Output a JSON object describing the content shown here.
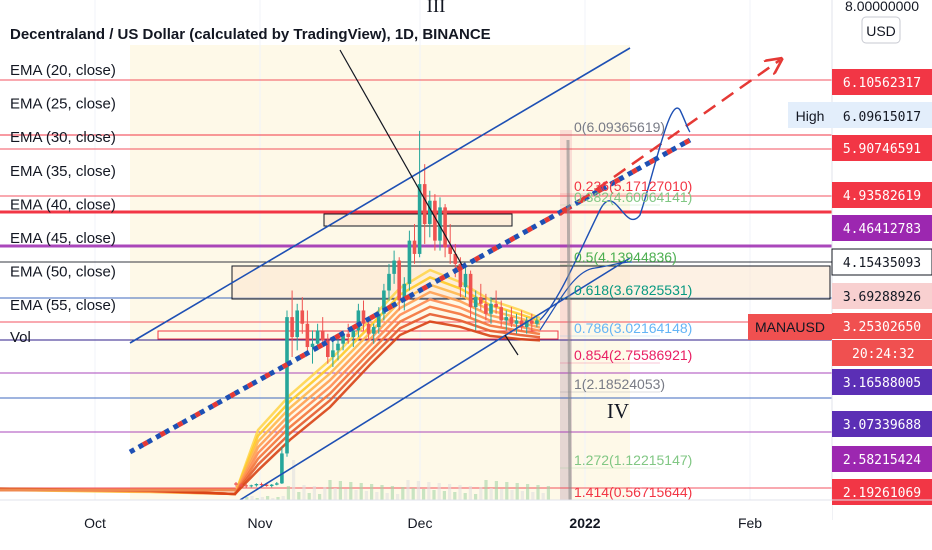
{
  "chart_data": {
    "type": "candlestick",
    "symbol": "MANAUSD",
    "title": "Decentraland / US Dollar (calculated by TradingView), 1D, BINANCE",
    "indicators": [
      "EMA (20, close)",
      "EMA (25, close)",
      "EMA (30, close)",
      "EMA (35, close)",
      "EMA (40, close)",
      "EMA (45, close)",
      "EMA (50, close)",
      "EMA (55, close)"
    ],
    "volume_label": "Vol",
    "x_ticks": [
      "Oct",
      "Nov",
      "Dec",
      "2022",
      "Feb"
    ],
    "currency": "USD",
    "y_top_label": "8.00000000",
    "high_label": "High",
    "high_value": "6.09615017",
    "countdown": "20:24:32",
    "wave_labels": [
      "III",
      "IV"
    ],
    "price_tags": [
      {
        "value": "6.10562317",
        "color": "#f23645"
      },
      {
        "value": "5.90746591",
        "color": "#f23645"
      },
      {
        "value": "4.93582619",
        "color": "#f23645"
      },
      {
        "value": "4.46412783",
        "color": "#9c27b0"
      },
      {
        "value": "4.15435093",
        "color": "#ffffff"
      },
      {
        "value": "3.69288926",
        "color": "#f8d0d0"
      },
      {
        "value": "3.25302650",
        "color": "#f05050"
      },
      {
        "value": "3.16588005",
        "color": "#5b2fb5"
      },
      {
        "value": "3.07339688",
        "color": "#5b2fb5"
      },
      {
        "value": "2.58215424",
        "color": "#9c27b0"
      },
      {
        "value": "2.19261069",
        "color": "#f23645"
      }
    ],
    "fib_levels": [
      {
        "label": "0(6.09365619)",
        "color": "#787b86"
      },
      {
        "label": "0.236(5.17127010)",
        "color": "#f23645"
      },
      {
        "label": "0.382(4.60064141)",
        "color": "#81c784"
      },
      {
        "label": "0.5(4.13944836)",
        "color": "#4caf50"
      },
      {
        "label": "0.618(3.67825531)",
        "color": "#089981"
      },
      {
        "label": "0.786(3.02164148)",
        "color": "#64b5f6"
      },
      {
        "label": "0.854(2.75586921)",
        "color": "#e91e63"
      },
      {
        "label": "1(2.18524053)",
        "color": "#787b86"
      },
      {
        "label": "1.272(1.12215147)",
        "color": "#81c784"
      },
      {
        "label": "1.414(0.56715644)",
        "color": "#f23645"
      }
    ],
    "candles": [
      [
        0.8,
        0.82,
        0.75,
        0.78
      ],
      [
        0.78,
        0.8,
        0.74,
        0.77
      ],
      [
        0.77,
        0.79,
        0.73,
        0.76
      ],
      [
        0.76,
        0.78,
        0.74,
        0.77
      ],
      [
        0.77,
        0.8,
        0.75,
        0.79
      ],
      [
        0.79,
        0.81,
        0.76,
        0.78
      ],
      [
        0.78,
        0.8,
        0.75,
        0.76
      ],
      [
        0.76,
        0.79,
        0.74,
        0.78
      ],
      [
        0.78,
        0.82,
        0.77,
        0.8
      ],
      [
        0.8,
        1.35,
        0.79,
        1.25
      ],
      [
        1.25,
        3.4,
        1.2,
        3.3
      ],
      [
        3.3,
        3.7,
        2.7,
        3.0
      ],
      [
        3.0,
        3.5,
        2.8,
        3.4
      ],
      [
        3.4,
        3.6,
        3.05,
        3.2
      ],
      [
        3.2,
        3.4,
        2.75,
        2.85
      ],
      [
        2.85,
        3.1,
        2.6,
        2.9
      ],
      [
        2.9,
        3.2,
        2.8,
        3.1
      ],
      [
        3.1,
        3.3,
        2.9,
        2.95
      ],
      [
        2.95,
        3.05,
        2.6,
        2.7
      ],
      [
        2.7,
        2.95,
        2.55,
        2.8
      ],
      [
        2.8,
        3.0,
        2.65,
        2.9
      ],
      [
        2.9,
        3.1,
        2.8,
        3.05
      ],
      [
        3.05,
        3.2,
        2.9,
        3.0
      ],
      [
        3.0,
        3.15,
        2.85,
        3.1
      ],
      [
        3.1,
        3.5,
        3.0,
        3.4
      ],
      [
        3.4,
        3.55,
        3.1,
        3.2
      ],
      [
        3.2,
        3.3,
        2.95,
        3.05
      ],
      [
        3.05,
        3.2,
        2.9,
        3.15
      ],
      [
        3.15,
        3.45,
        3.05,
        3.35
      ],
      [
        3.35,
        3.8,
        3.25,
        3.7
      ],
      [
        3.7,
        4.1,
        3.55,
        3.95
      ],
      [
        3.95,
        4.3,
        3.8,
        4.15
      ],
      [
        4.15,
        4.2,
        3.4,
        3.55
      ],
      [
        3.55,
        3.9,
        3.4,
        3.8
      ],
      [
        3.8,
        4.6,
        3.7,
        4.45
      ],
      [
        4.45,
        4.7,
        4.1,
        4.25
      ],
      [
        4.25,
        6.1,
        4.2,
        5.3
      ],
      [
        5.3,
        5.6,
        4.4,
        4.7
      ],
      [
        4.7,
        5.2,
        4.5,
        5.05
      ],
      [
        5.05,
        5.15,
        4.3,
        4.45
      ],
      [
        4.45,
        5.1,
        4.3,
        4.95
      ],
      [
        4.95,
        5.0,
        4.2,
        4.35
      ],
      [
        4.35,
        4.7,
        4.1,
        4.25
      ],
      [
        4.25,
        4.4,
        3.9,
        4.1
      ],
      [
        4.1,
        4.2,
        3.6,
        3.75
      ],
      [
        3.75,
        4.1,
        3.6,
        3.95
      ],
      [
        3.95,
        4.0,
        3.3,
        3.45
      ],
      [
        3.45,
        3.7,
        3.1,
        3.6
      ],
      [
        3.6,
        3.8,
        3.4,
        3.5
      ],
      [
        3.5,
        3.65,
        3.25,
        3.35
      ],
      [
        3.35,
        3.6,
        3.2,
        3.5
      ],
      [
        3.5,
        3.7,
        3.35,
        3.45
      ],
      [
        3.45,
        3.55,
        3.15,
        3.25
      ],
      [
        3.25,
        3.4,
        3.1,
        3.3
      ],
      [
        3.3,
        3.45,
        3.15,
        3.2
      ],
      [
        3.2,
        3.35,
        3.05,
        3.25
      ],
      [
        3.25,
        3.4,
        3.1,
        3.15
      ],
      [
        3.15,
        3.3,
        3.05,
        3.25
      ],
      [
        3.25,
        3.35,
        3.1,
        3.2
      ],
      [
        3.2,
        3.3,
        3.15,
        3.25
      ]
    ]
  }
}
